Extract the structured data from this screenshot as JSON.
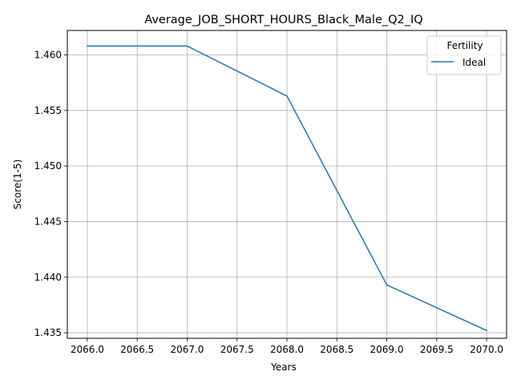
{
  "chart_data": {
    "type": "line",
    "title": "Average_JOB_SHORT_HOURS_Black_Male_Q2_IQ",
    "xlabel": "Years",
    "ylabel": "Score(1-5)",
    "x": [
      2066,
      2067,
      2068,
      2069,
      2070
    ],
    "series": [
      {
        "name": "Ideal",
        "color": "#1f77b4",
        "values": [
          1.4608,
          1.4608,
          1.4563,
          1.4393,
          1.4352
        ]
      }
    ],
    "xlim": [
      2065.8,
      2070.2
    ],
    "ylim": [
      1.4345,
      1.4622
    ],
    "xticks": [
      2066.0,
      2066.5,
      2067.0,
      2067.5,
      2068.0,
      2068.5,
      2069.0,
      2069.5,
      2070.0
    ],
    "xtick_labels": [
      "2066.0",
      "2066.5",
      "2067.0",
      "2067.5",
      "2068.0",
      "2068.5",
      "2069.0",
      "2069.5",
      "2070.0"
    ],
    "yticks": [
      1.435,
      1.44,
      1.445,
      1.45,
      1.455,
      1.46
    ],
    "ytick_labels": [
      "1.435",
      "1.440",
      "1.445",
      "1.450",
      "1.455",
      "1.460"
    ],
    "grid": true,
    "legend": {
      "title": "Fertility",
      "position": "top-right"
    }
  }
}
